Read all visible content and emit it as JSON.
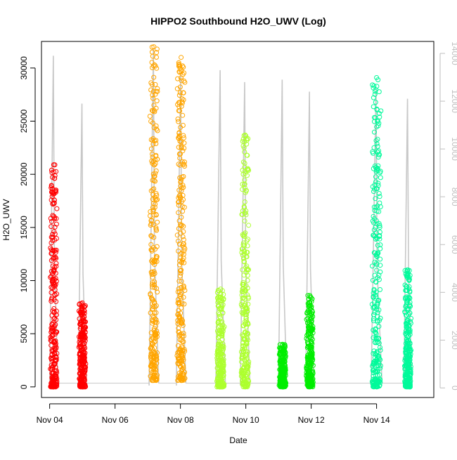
{
  "chart_data": {
    "type": "scatter",
    "title": "HIPPO2 Southbound H2O_UWV (Log)",
    "xlabel": "Date",
    "ylabel": "H2O_UWV",
    "x_unit": "date",
    "xlim": [
      "2009-11-03 18:00",
      "2009-11-15 18:00"
    ],
    "ylim": [
      -1000,
      32500
    ],
    "y2lim": [
      -400,
      14500
    ],
    "x_ticks": [
      {
        "label": "Nov 04",
        "date": "2009-11-04"
      },
      {
        "label": "Nov 06",
        "date": "2009-11-06"
      },
      {
        "label": "Nov 08",
        "date": "2009-11-08"
      },
      {
        "label": "Nov 10",
        "date": "2009-11-10"
      },
      {
        "label": "Nov 12",
        "date": "2009-11-12"
      },
      {
        "label": "Nov 14",
        "date": "2009-11-14"
      }
    ],
    "y_ticks": [
      0,
      5000,
      10000,
      15000,
      20000,
      25000,
      30000
    ],
    "y2_ticks": [
      0,
      2000,
      4000,
      6000,
      8000,
      10000,
      12000,
      14000
    ],
    "grid": false,
    "legend": "none",
    "colors": {
      "trace": "#c8c8c8",
      "right_axis": "#bebebe",
      "axis": "#000000"
    },
    "flights": [
      {
        "color": "#ff0000",
        "start": "2009-11-04 00:00",
        "end": "2009-11-04 06:00",
        "y_min": 0,
        "y_max": 20900,
        "trace_max": 13900
      },
      {
        "color": "#ff0000",
        "start": "2009-11-04 21:00",
        "end": "2009-11-05 03:00",
        "y_min": 0,
        "y_max": 7900,
        "trace_max": 11900
      },
      {
        "color": "#ffa500",
        "start": "2009-11-07 01:00",
        "end": "2009-11-07 08:00",
        "y_min": 600,
        "y_max": 32000,
        "trace_max": 14200
      },
      {
        "color": "#ffa500",
        "start": "2009-11-07 21:00",
        "end": "2009-11-08 04:00",
        "y_min": 600,
        "y_max": 31000,
        "trace_max": 13200
      },
      {
        "color": "#adff2f",
        "start": "2009-11-09 02:00",
        "end": "2009-11-09 09:00",
        "y_min": 0,
        "y_max": 9200,
        "trace_max": 13300
      },
      {
        "color": "#adff2f",
        "start": "2009-11-09 20:00",
        "end": "2009-11-10 03:00",
        "y_min": 0,
        "y_max": 23700,
        "trace_max": 12800
      },
      {
        "color": "#00ee00",
        "start": "2009-11-11 00:00",
        "end": "2009-11-11 06:00",
        "y_min": 0,
        "y_max": 4000,
        "trace_max": 12900
      },
      {
        "color": "#00ee00",
        "start": "2009-11-11 20:00",
        "end": "2009-11-12 02:00",
        "y_min": 0,
        "y_max": 8600,
        "trace_max": 12400
      },
      {
        "color": "#00fa9a",
        "start": "2009-11-13 20:00",
        "end": "2009-11-14 04:00",
        "y_min": 0,
        "y_max": 29100,
        "trace_max": 12500
      },
      {
        "color": "#00fa9a",
        "start": "2009-11-14 20:00",
        "end": "2009-11-15 02:00",
        "y_min": 0,
        "y_max": 11000,
        "trace_max": 12100
      }
    ]
  }
}
